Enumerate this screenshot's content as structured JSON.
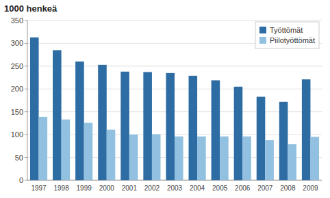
{
  "chart_data": {
    "type": "bar",
    "title": "1000 henkeä",
    "categories": [
      "1997",
      "1998",
      "1999",
      "2000",
      "2001",
      "2002",
      "2003",
      "2004",
      "2005",
      "2006",
      "2007",
      "2008",
      "2009"
    ],
    "series": [
      {
        "name": "Työttömät",
        "color": "#2E6DA4",
        "values": [
          313,
          285,
          260,
          253,
          238,
          237,
          235,
          229,
          219,
          205,
          183,
          172,
          221
        ]
      },
      {
        "name": "Piilotyöttömät",
        "color": "#92C0E0",
        "values": [
          139,
          133,
          126,
          111,
          100,
          101,
          96,
          96,
          96,
          96,
          88,
          79,
          95
        ]
      }
    ],
    "ylim": [
      0,
      350
    ],
    "yticks": [
      0,
      50,
      100,
      150,
      200,
      250,
      300,
      350
    ],
    "grid": true,
    "legend": "upper right"
  }
}
